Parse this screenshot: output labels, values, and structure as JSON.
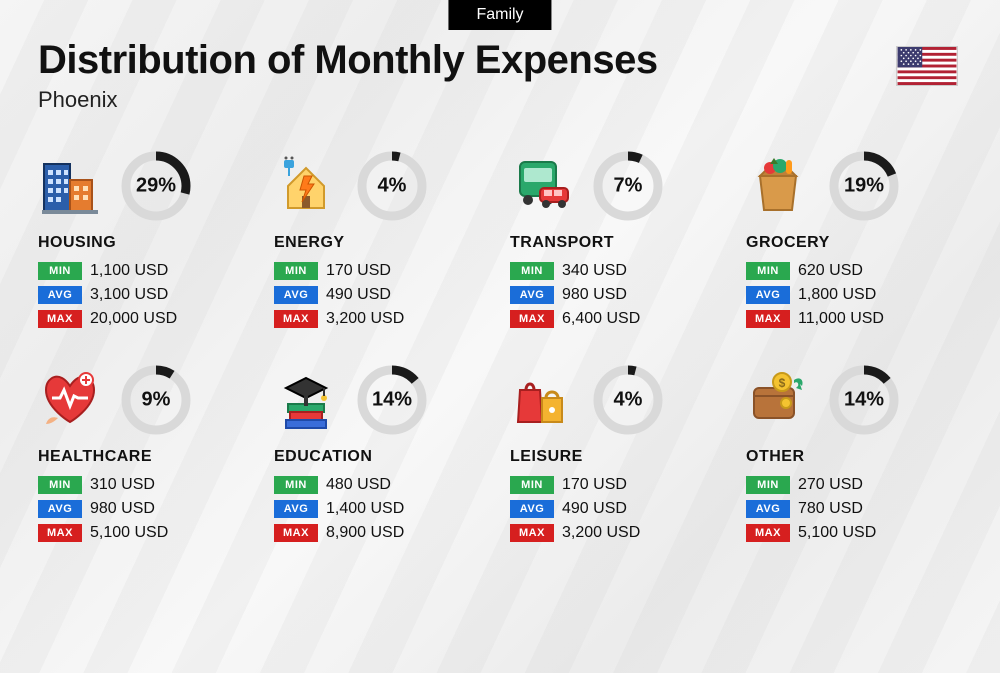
{
  "tag": "Family",
  "title": "Distribution of Monthly Expenses",
  "subtitle": "Phoenix",
  "currency": "USD",
  "colors": {
    "min_badge": "#2aa84f",
    "avg_badge": "#1a6dd9",
    "max_badge": "#d61f1f",
    "donut_fill": "#1a1a1a",
    "donut_track": "#d9d9d9",
    "background": "#f2f2f2",
    "text": "#111111"
  },
  "labels": {
    "min": "MIN",
    "avg": "AVG",
    "max": "MAX"
  },
  "donut": {
    "radius": 30,
    "stroke_width": 9,
    "size": 72
  },
  "flag": {
    "stripe_red": "#b22234",
    "stripe_white": "#ffffff",
    "canton": "#3c3b6e"
  },
  "categories": [
    {
      "key": "housing",
      "name": "HOUSING",
      "percent": 29,
      "min": "1,100",
      "avg": "3,100",
      "max": "20,000"
    },
    {
      "key": "energy",
      "name": "ENERGY",
      "percent": 4,
      "min": "170",
      "avg": "490",
      "max": "3,200"
    },
    {
      "key": "transport",
      "name": "TRANSPORT",
      "percent": 7,
      "min": "340",
      "avg": "980",
      "max": "6,400"
    },
    {
      "key": "grocery",
      "name": "GROCERY",
      "percent": 19,
      "min": "620",
      "avg": "1,800",
      "max": "11,000"
    },
    {
      "key": "healthcare",
      "name": "HEALTHCARE",
      "percent": 9,
      "min": "310",
      "avg": "980",
      "max": "5,100"
    },
    {
      "key": "education",
      "name": "EDUCATION",
      "percent": 14,
      "min": "480",
      "avg": "1,400",
      "max": "8,900"
    },
    {
      "key": "leisure",
      "name": "LEISURE",
      "percent": 4,
      "min": "170",
      "avg": "490",
      "max": "3,200"
    },
    {
      "key": "other",
      "name": "OTHER",
      "percent": 14,
      "min": "270",
      "avg": "780",
      "max": "5,100"
    }
  ]
}
